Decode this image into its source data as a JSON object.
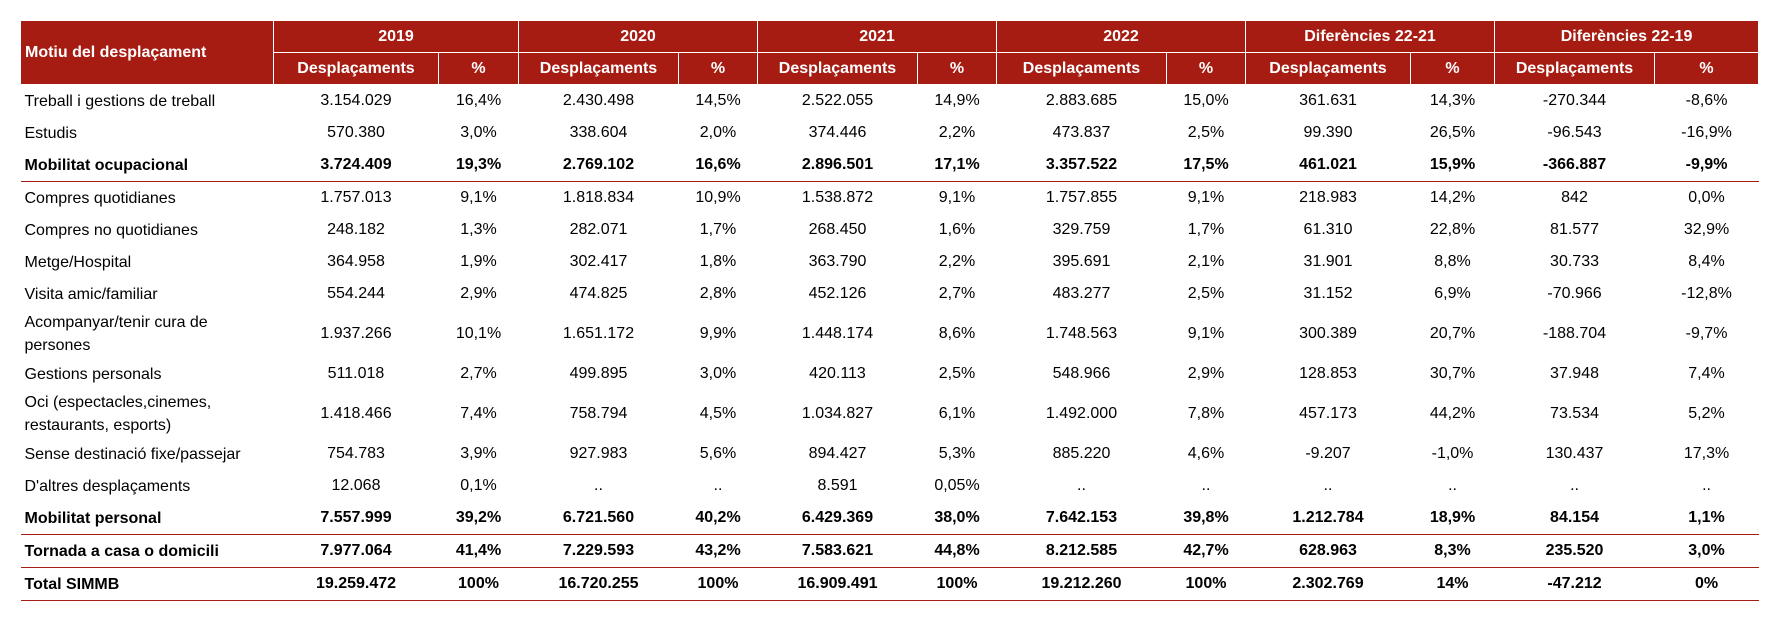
{
  "header": {
    "motiu": "Motiu del desplaçament",
    "groups": [
      "2019",
      "2020",
      "2021",
      "2022",
      "Diferències 22-21",
      "Diferències 22-19"
    ],
    "sub_desp": "Desplaçaments",
    "sub_pct": "%"
  },
  "rows": [
    {
      "label": "Treball i gestions de treball",
      "values": [
        "3.154.029",
        "16,4%",
        "2.430.498",
        "14,5%",
        "2.522.055",
        "14,9%",
        "2.883.685",
        "15,0%",
        "361.631",
        "14,3%",
        "-270.344",
        "-8,6%"
      ]
    },
    {
      "label": "Estudis",
      "values": [
        "570.380",
        "3,0%",
        "338.604",
        "2,0%",
        "374.446",
        "2,2%",
        "473.837",
        "2,5%",
        "99.390",
        "26,5%",
        "-96.543",
        "-16,9%"
      ]
    },
    {
      "label": "Mobilitat ocupacional",
      "values": [
        "3.724.409",
        "19,3%",
        "2.769.102",
        "16,6%",
        "2.896.501",
        "17,1%",
        "3.357.522",
        "17,5%",
        "461.021",
        "15,9%",
        "-366.887",
        "-9,9%"
      ]
    },
    {
      "label": "Compres quotidianes",
      "values": [
        "1.757.013",
        "9,1%",
        "1.818.834",
        "10,9%",
        "1.538.872",
        "9,1%",
        "1.757.855",
        "9,1%",
        "218.983",
        "14,2%",
        "842",
        "0,0%"
      ]
    },
    {
      "label": "Compres no quotidianes",
      "values": [
        "248.182",
        "1,3%",
        "282.071",
        "1,7%",
        "268.450",
        "1,6%",
        "329.759",
        "1,7%",
        "61.310",
        "22,8%",
        "81.577",
        "32,9%"
      ]
    },
    {
      "label": "Metge/Hospital",
      "values": [
        "364.958",
        "1,9%",
        "302.417",
        "1,8%",
        "363.790",
        "2,2%",
        "395.691",
        "2,1%",
        "31.901",
        "8,8%",
        "30.733",
        "8,4%"
      ]
    },
    {
      "label": "Visita amic/familiar",
      "values": [
        "554.244",
        "2,9%",
        "474.825",
        "2,8%",
        "452.126",
        "2,7%",
        "483.277",
        "2,5%",
        "31.152",
        "6,9%",
        "-70.966",
        "-12,8%"
      ]
    },
    {
      "label": "Acompanyar/tenir cura de persones",
      "values": [
        "1.937.266",
        "10,1%",
        "1.651.172",
        "9,9%",
        "1.448.174",
        "8,6%",
        "1.748.563",
        "9,1%",
        "300.389",
        "20,7%",
        "-188.704",
        "-9,7%"
      ]
    },
    {
      "label": "Gestions personals",
      "values": [
        "511.018",
        "2,7%",
        "499.895",
        "3,0%",
        "420.113",
        "2,5%",
        "548.966",
        "2,9%",
        "128.853",
        "30,7%",
        "37.948",
        "7,4%"
      ]
    },
    {
      "label": "Oci (espectacles,cinemes, restaurants, esports)",
      "values": [
        "1.418.466",
        "7,4%",
        "758.794",
        "4,5%",
        "1.034.827",
        "6,1%",
        "1.492.000",
        "7,8%",
        "457.173",
        "44,2%",
        "73.534",
        "5,2%"
      ]
    },
    {
      "label": "Sense destinació fixe/passejar",
      "values": [
        "754.783",
        "3,9%",
        "927.983",
        "5,6%",
        "894.427",
        "5,3%",
        "885.220",
        "4,6%",
        "-9.207",
        "-1,0%",
        "130.437",
        "17,3%"
      ]
    },
    {
      "label": "D'altres desplaçaments",
      "values": [
        "12.068",
        "0,1%",
        "..",
        "..",
        "8.591",
        "0,05%",
        "..",
        "..",
        "..",
        "..",
        "..",
        ".."
      ]
    },
    {
      "label": "Mobilitat personal",
      "values": [
        "7.557.999",
        "39,2%",
        "6.721.560",
        "40,2%",
        "6.429.369",
        "38,0%",
        "7.642.153",
        "39,8%",
        "1.212.784",
        "18,9%",
        "84.154",
        "1,1%"
      ]
    },
    {
      "label": "Tornada a casa o domicili",
      "values": [
        "7.977.064",
        "41,4%",
        "7.229.593",
        "43,2%",
        "7.583.621",
        "44,8%",
        "8.212.585",
        "42,7%",
        "628.963",
        "8,3%",
        "235.520",
        "3,0%"
      ]
    },
    {
      "label": "Total SIMMB",
      "values": [
        "19.259.472",
        "100%",
        "16.720.255",
        "100%",
        "16.909.491",
        "100%",
        "19.212.260",
        "100%",
        "2.302.769",
        "14%",
        "-47.212",
        "0%"
      ]
    }
  ]
}
